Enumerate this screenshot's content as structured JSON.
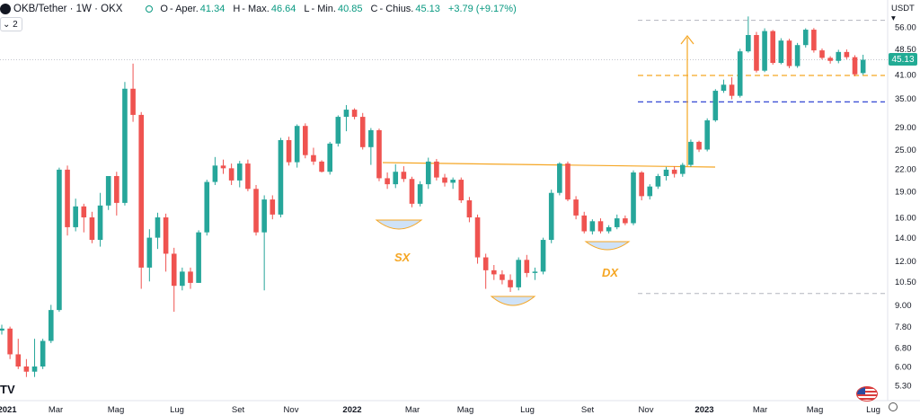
{
  "header": {
    "symbol": "OKB/Tether · 1W · OKX",
    "o_key": "O",
    "o_label": "- Aper.",
    "o_val": "41.34",
    "h_key": "H",
    "h_label": "- Max.",
    "h_val": "46.64",
    "l_key": "L",
    "l_label": "- Min.",
    "l_val": "40.85",
    "c_key": "C",
    "c_label": "- Chius.",
    "c_val": "45.13",
    "change": "+3.79 (+9.17%)",
    "indicator_count": "2"
  },
  "currency_label": "USDT ▾",
  "current_price_label": "45.13",
  "watermark": "TV",
  "chart_data": {
    "type": "candlestick",
    "scale": "log",
    "y_ticks": [
      5.3,
      6.0,
      6.8,
      7.8,
      9.0,
      10.5,
      12.0,
      14.0,
      16.0,
      19.0,
      22.0,
      25.0,
      29.0,
      35.0,
      41.0,
      48.5,
      56.0
    ],
    "y_tick_labels": [
      "5.30",
      "6.00",
      "6.80",
      "7.80",
      "9.00",
      "10.50",
      "12.00",
      "14.00",
      "16.00",
      "19.00",
      "22.00",
      "25.00",
      "29.00",
      "35.00",
      "41.00",
      "48.50",
      "56.00"
    ],
    "x_tick_labels": [
      "2021",
      "Mar",
      "Mag",
      "Lug",
      "Set",
      "Nov",
      "2022",
      "Mar",
      "Mag",
      "Lug",
      "Set",
      "Nov",
      "2023",
      "Mar",
      "Mag",
      "Lug"
    ],
    "x_tick_bold": [
      true,
      false,
      false,
      false,
      false,
      false,
      true,
      false,
      false,
      false,
      false,
      false,
      true,
      false,
      false,
      false
    ],
    "ylim": [
      4.9,
      68
    ],
    "colors": {
      "up": "#26a69a",
      "down": "#ef5350",
      "orange": "#f5a623",
      "blue": "#3f51d6",
      "gray": "#b2b5be",
      "bowl": "#cfe2f7"
    },
    "annotations": {
      "left_shoulder": "SX",
      "right_shoulder": "DX"
    },
    "levels": {
      "upper_gray": 58.5,
      "lower_gray": 9.7,
      "orange_support": 40.7,
      "blue_line": 34.2,
      "neckline": 22.8
    },
    "candles": [
      [
        7.6,
        7.9,
        7.4,
        7.7
      ],
      [
        7.7,
        7.8,
        6.3,
        6.5
      ],
      [
        6.5,
        7.2,
        5.9,
        6.0
      ],
      [
        6.0,
        6.3,
        5.6,
        5.8
      ],
      [
        5.8,
        7.2,
        5.6,
        6.0
      ],
      [
        6.0,
        7.2,
        5.9,
        7.1
      ],
      [
        7.1,
        9.0,
        7.0,
        8.7
      ],
      [
        8.7,
        22.2,
        8.6,
        21.9
      ],
      [
        21.9,
        22.5,
        14.2,
        15.0
      ],
      [
        15.0,
        18.1,
        14.6,
        17.2
      ],
      [
        17.2,
        17.5,
        14.5,
        16.0
      ],
      [
        16.0,
        16.6,
        13.5,
        13.8
      ],
      [
        13.8,
        18.8,
        13.2,
        17.3
      ],
      [
        17.3,
        21.0,
        16.8,
        21.0
      ],
      [
        21.0,
        21.6,
        16.2,
        17.6
      ],
      [
        17.6,
        39.0,
        17.3,
        37.3
      ],
      [
        37.3,
        44.0,
        30.0,
        31.4
      ],
      [
        31.4,
        32.0,
        10.0,
        11.5
      ],
      [
        11.5,
        14.8,
        10.5,
        14.0
      ],
      [
        14.0,
        16.5,
        13.0,
        16.0
      ],
      [
        16.0,
        16.4,
        11.2,
        12.6
      ],
      [
        12.6,
        13.1,
        8.6,
        10.2
      ],
      [
        10.2,
        11.5,
        9.9,
        11.2
      ],
      [
        11.2,
        11.5,
        10.0,
        10.4
      ],
      [
        10.4,
        14.7,
        10.4,
        14.5
      ],
      [
        14.5,
        20.5,
        14.2,
        20.2
      ],
      [
        20.2,
        23.8,
        19.8,
        22.5
      ],
      [
        22.5,
        23.4,
        21.3,
        22.1
      ],
      [
        22.1,
        22.8,
        19.8,
        20.4
      ],
      [
        20.4,
        23.2,
        19.5,
        22.8
      ],
      [
        22.8,
        23.4,
        19.0,
        19.3
      ],
      [
        19.3,
        19.8,
        14.2,
        14.5
      ],
      [
        14.5,
        18.5,
        9.9,
        18.0
      ],
      [
        18.0,
        18.5,
        15.8,
        16.3
      ],
      [
        16.3,
        27.0,
        16.0,
        26.6
      ],
      [
        26.6,
        27.2,
        22.5,
        23.0
      ],
      [
        23.0,
        29.5,
        22.2,
        29.2
      ],
      [
        29.2,
        29.7,
        23.6,
        24.1
      ],
      [
        24.1,
        25.3,
        22.6,
        23.1
      ],
      [
        23.1,
        23.3,
        21.5,
        21.6
      ],
      [
        21.6,
        26.3,
        21.2,
        26.0
      ],
      [
        26.0,
        31.3,
        25.5,
        31.0
      ],
      [
        31.0,
        33.5,
        28.2,
        32.5
      ],
      [
        32.5,
        32.8,
        30.5,
        31.0
      ],
      [
        31.0,
        31.8,
        25.0,
        25.4
      ],
      [
        25.4,
        28.8,
        22.6,
        28.4
      ],
      [
        28.4,
        28.7,
        20.3,
        20.7
      ],
      [
        20.7,
        21.5,
        19.3,
        19.9
      ],
      [
        19.9,
        22.7,
        19.4,
        21.6
      ],
      [
        21.6,
        22.4,
        20.2,
        20.6
      ],
      [
        20.6,
        20.9,
        17.1,
        17.5
      ],
      [
        17.5,
        20.3,
        17.2,
        19.9
      ],
      [
        19.9,
        23.7,
        19.3,
        23.1
      ],
      [
        23.1,
        23.5,
        20.4,
        20.8
      ],
      [
        20.8,
        21.3,
        19.6,
        20.1
      ],
      [
        20.1,
        20.8,
        19.3,
        20.5
      ],
      [
        20.5,
        20.8,
        17.6,
        17.9
      ],
      [
        17.9,
        18.3,
        15.5,
        16.0
      ],
      [
        16.0,
        16.3,
        11.8,
        12.3
      ],
      [
        12.3,
        12.6,
        10.0,
        11.3
      ],
      [
        11.3,
        11.7,
        10.6,
        11.0
      ],
      [
        11.0,
        11.3,
        10.3,
        10.6
      ],
      [
        10.6,
        11.0,
        9.8,
        10.1
      ],
      [
        10.1,
        12.3,
        9.9,
        12.1
      ],
      [
        12.1,
        12.5,
        10.8,
        11.1
      ],
      [
        11.1,
        11.5,
        10.6,
        11.2
      ],
      [
        11.2,
        14.0,
        11.0,
        13.8
      ],
      [
        13.8,
        19.2,
        13.5,
        18.8
      ],
      [
        18.8,
        23.0,
        18.5,
        22.8
      ],
      [
        22.8,
        23.1,
        17.8,
        18.0
      ],
      [
        18.0,
        18.4,
        15.8,
        16.2
      ],
      [
        16.2,
        16.6,
        14.4,
        14.6
      ],
      [
        14.6,
        15.8,
        14.3,
        15.6
      ],
      [
        15.6,
        15.9,
        14.4,
        14.6
      ],
      [
        14.6,
        15.2,
        14.4,
        15.0
      ],
      [
        15.0,
        16.3,
        14.8,
        15.9
      ],
      [
        15.9,
        16.2,
        15.2,
        15.4
      ],
      [
        15.4,
        21.8,
        15.2,
        21.5
      ],
      [
        21.5,
        21.7,
        17.9,
        18.4
      ],
      [
        18.4,
        19.9,
        18.0,
        19.6
      ],
      [
        19.6,
        21.3,
        19.3,
        21.0
      ],
      [
        21.0,
        22.3,
        20.4,
        21.9
      ],
      [
        21.9,
        22.4,
        20.8,
        21.3
      ],
      [
        21.3,
        22.9,
        20.9,
        22.6
      ],
      [
        22.6,
        26.7,
        22.3,
        26.3
      ],
      [
        26.3,
        26.5,
        24.6,
        25.0
      ],
      [
        25.0,
        30.7,
        24.7,
        30.3
      ],
      [
        30.3,
        37.2,
        30.0,
        36.8
      ],
      [
        36.8,
        39.6,
        36.3,
        38.3
      ],
      [
        38.3,
        40.2,
        34.8,
        35.6
      ],
      [
        35.6,
        48.5,
        35.2,
        47.7
      ],
      [
        47.7,
        60.0,
        47.3,
        53.1
      ],
      [
        53.1,
        54.2,
        41.5,
        42.0
      ],
      [
        42.0,
        55.5,
        41.6,
        54.5
      ],
      [
        54.5,
        54.9,
        43.7,
        44.2
      ],
      [
        44.2,
        52.0,
        43.8,
        51.2
      ],
      [
        51.2,
        51.8,
        42.7,
        43.3
      ],
      [
        43.3,
        50.4,
        42.8,
        49.7
      ],
      [
        49.7,
        55.5,
        48.9,
        55.0
      ],
      [
        55.0,
        55.6,
        47.3,
        48.0
      ],
      [
        48.0,
        48.6,
        45.2,
        45.7
      ],
      [
        45.7,
        46.2,
        44.0,
        44.8
      ],
      [
        44.8,
        48.2,
        44.1,
        47.5
      ],
      [
        47.5,
        48.3,
        45.3,
        45.9
      ],
      [
        45.9,
        46.5,
        40.5,
        41.0
      ],
      [
        41.34,
        46.64,
        40.85,
        45.13
      ]
    ]
  }
}
